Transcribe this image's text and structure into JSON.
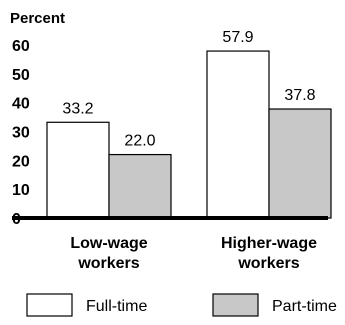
{
  "chart_data": {
    "type": "bar",
    "ylabel": "Percent",
    "ylim": [
      0,
      60
    ],
    "yticks": [
      0,
      10,
      20,
      30,
      40,
      50,
      60
    ],
    "grid": false,
    "legend_position": "bottom",
    "categories": [
      [
        "Low-wage",
        "workers"
      ],
      [
        "Higher-wage",
        "workers"
      ]
    ],
    "series": [
      {
        "name": "Full-time",
        "color": "#ffffff",
        "values": [
          33.2,
          57.9
        ],
        "labels": [
          "33.2",
          "57.9"
        ]
      },
      {
        "name": "Part-time",
        "color": "#c8c8c8",
        "values": [
          22.0,
          37.8
        ],
        "labels": [
          "22.0",
          "37.8"
        ]
      }
    ]
  }
}
